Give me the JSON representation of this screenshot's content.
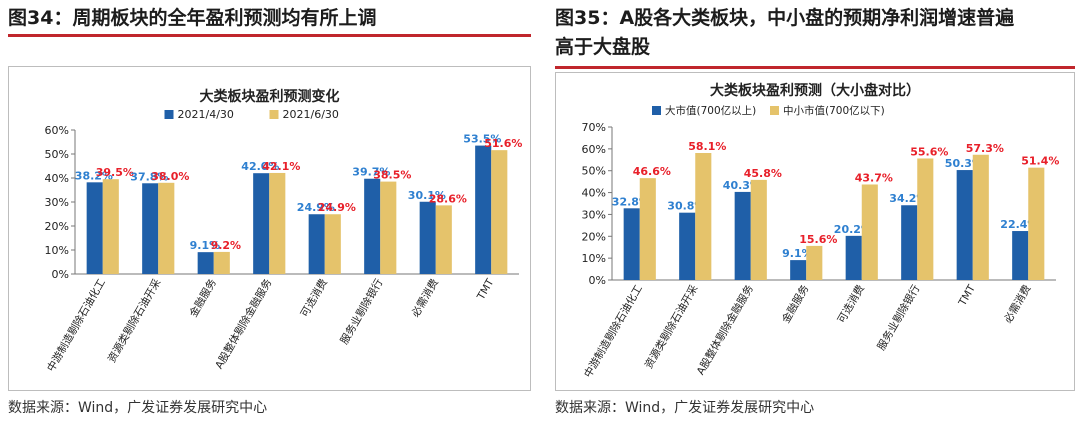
{
  "left": {
    "figure_title": "图34：周期板块的全年盈利预测均有所上调",
    "source": "数据来源：Wind，广发证券发展研究中心"
  },
  "right": {
    "figure_title_line1": "图35：A股各大类板块，中小盘的预期净利润增速普遍",
    "figure_title_line2": "高于大盘股",
    "source": "数据来源：Wind，广发证券发展研究中心"
  },
  "colors": {
    "blue": "#1f5fa8",
    "gold": "#e5c36b",
    "label_blue": "#2f80d0",
    "label_red": "#e8202a",
    "rule": "#c0262c"
  },
  "chart_data": [
    {
      "type": "bar",
      "title": "大类板块盈利预测变化",
      "categories": [
        "中游制造剔除石油化工",
        "资源类剔除石油开采",
        "金融服务",
        "A股整体剔除金融服务",
        "可选消费",
        "服务业剔除银行",
        "必需消费",
        "TMT"
      ],
      "series": [
        {
          "name": "2021/4/30",
          "values": [
            38.2,
            37.8,
            9.1,
            42.0,
            24.9,
            39.7,
            30.1,
            53.5
          ],
          "labels": [
            "38.2%",
            "37.8%",
            "9.1%",
            "42.0%",
            "24.9%",
            "39.7%",
            "30.1%",
            "53.5%"
          ]
        },
        {
          "name": "2021/6/30",
          "values": [
            39.5,
            38.0,
            9.2,
            42.1,
            24.9,
            38.5,
            28.6,
            51.6
          ],
          "labels": [
            "39.5%",
            "38.0%",
            "9.2%",
            "42.1%",
            "24.9%",
            "38.5%",
            "28.6%",
            "51.6%"
          ]
        }
      ],
      "ylim": [
        0,
        60
      ],
      "yticks": [
        "0%",
        "10%",
        "20%",
        "30%",
        "40%",
        "50%",
        "60%"
      ],
      "legend": "top"
    },
    {
      "type": "bar",
      "title": "大类板块盈利预测（大小盘对比）",
      "categories": [
        "中游制造剔除石油化工",
        "资源类剔除石油开采",
        "A股整体剔除金融服务",
        "金融服务",
        "可选消费",
        "服务业剔除银行",
        "TMT",
        "必需消费"
      ],
      "series": [
        {
          "name": "大市值(700亿以上)",
          "values": [
            32.8,
            30.8,
            40.3,
            9.1,
            20.2,
            34.2,
            50.3,
            22.4
          ],
          "labels": [
            "32.8%",
            "30.8%",
            "40.3%",
            "9.1%",
            "20.2%",
            "34.2%",
            "50.3%",
            "22.4%"
          ]
        },
        {
          "name": "中小市值(700亿以下)",
          "values": [
            46.6,
            58.1,
            45.8,
            15.6,
            43.7,
            55.6,
            57.3,
            51.4
          ],
          "labels": [
            "46.6%",
            "58.1%",
            "45.8%",
            "15.6%",
            "43.7%",
            "55.6%",
            "57.3%",
            "51.4%"
          ]
        }
      ],
      "ylim": [
        0,
        70
      ],
      "yticks": [
        "0%",
        "10%",
        "20%",
        "30%",
        "40%",
        "50%",
        "60%",
        "70%"
      ],
      "legend": "top-left"
    }
  ]
}
